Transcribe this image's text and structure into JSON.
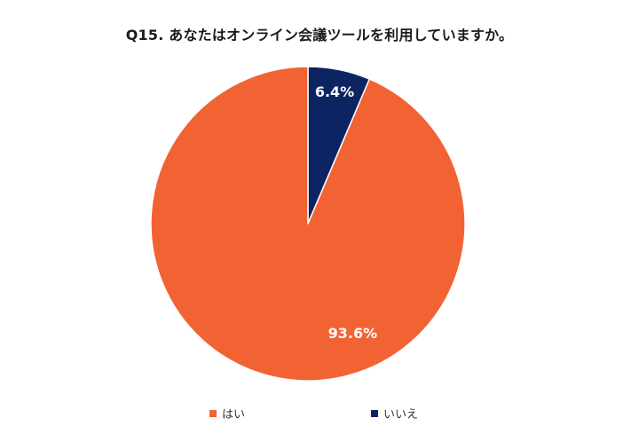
{
  "chart_data": {
    "type": "pie",
    "title": "Q15. あなたはオンライン会議ツールを利用していますか。",
    "categories": [
      "はい",
      "いいえ"
    ],
    "values": [
      93.6,
      6.4
    ],
    "value_labels": [
      "93.6%",
      "6.4%"
    ],
    "colors": [
      "#F26334",
      "#0D2462"
    ],
    "start_angle": "12 o'clock",
    "direction": "clockwise, starting with いいえ",
    "legend_position": "bottom"
  }
}
